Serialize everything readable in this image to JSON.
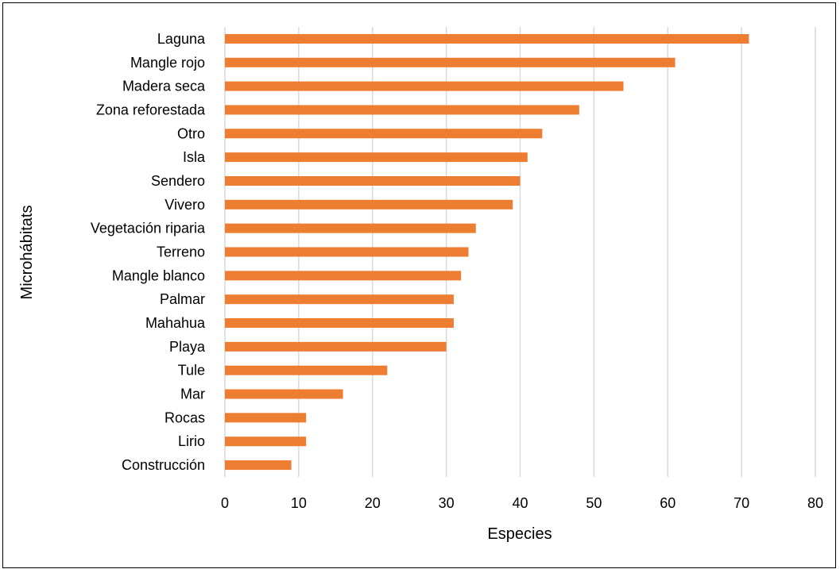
{
  "chart_data": {
    "type": "bar",
    "orientation": "horizontal",
    "categories": [
      "Laguna",
      "Mangle rojo",
      "Madera seca",
      "Zona reforestada",
      "Otro",
      "Isla",
      "Sendero",
      "Vivero",
      "Vegetación riparia",
      "Terreno",
      "Mangle blanco",
      "Palmar",
      "Mahahua",
      "Playa",
      "Tule",
      "Mar",
      "Rocas",
      "Lirio",
      "Construcción"
    ],
    "values": [
      71,
      61,
      54,
      48,
      43,
      41,
      40,
      39,
      34,
      33,
      32,
      31,
      31,
      30,
      22,
      16,
      11,
      11,
      9
    ],
    "title": "",
    "xlabel": "Especies",
    "ylabel": "Microhábitats",
    "xlim": [
      0,
      80
    ],
    "xticks": [
      "0",
      "10",
      "20",
      "30",
      "40",
      "50",
      "60",
      "70",
      "80"
    ],
    "grid": "vertical",
    "legend": "none",
    "bar_color": "#ED7D31",
    "grid_color": "#D9D9D9"
  }
}
